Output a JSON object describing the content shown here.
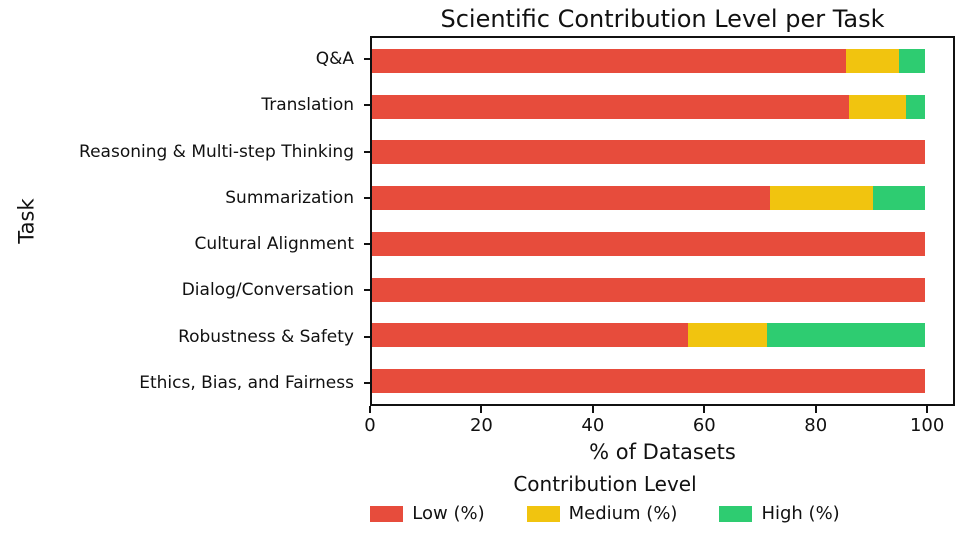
{
  "colors": {
    "background": "#ffffff",
    "spine": "#111111",
    "text": "#111111",
    "low": "#e74c3c",
    "medium": "#f1c40f",
    "high": "#2ecc71"
  },
  "chart_data": {
    "type": "bar",
    "orientation": "horizontal",
    "stacked": true,
    "title": "Scientific Contribution Level per Task",
    "xlabel": "% of Datasets",
    "ylabel": "Task",
    "xlim": [
      0,
      105
    ],
    "xticks": [
      0,
      20,
      40,
      60,
      80,
      100
    ],
    "grid": false,
    "categories": [
      "Q&A",
      "Translation",
      "Reasoning & Multi-step Thinking",
      "Summarization",
      "Cultural Alignment",
      "Dialog/Conversation",
      "Robustness & Safety",
      "Ethics, Bias, and Fairness"
    ],
    "series": [
      {
        "name": "Low (%)",
        "key": "low",
        "color": "#e74c3c",
        "values": [
          85.7,
          86.2,
          100,
          72.0,
          100,
          100,
          57.1,
          100
        ]
      },
      {
        "name": "Medium (%)",
        "key": "medium",
        "color": "#f1c40f",
        "values": [
          9.5,
          10.3,
          0,
          18.6,
          0,
          0,
          14.3,
          0
        ]
      },
      {
        "name": "High (%)",
        "key": "high",
        "color": "#2ecc71",
        "values": [
          4.8,
          3.5,
          0,
          9.4,
          0,
          0,
          28.6,
          0
        ]
      }
    ],
    "legend": {
      "title": "Contribution Level",
      "position": "bottom"
    }
  }
}
